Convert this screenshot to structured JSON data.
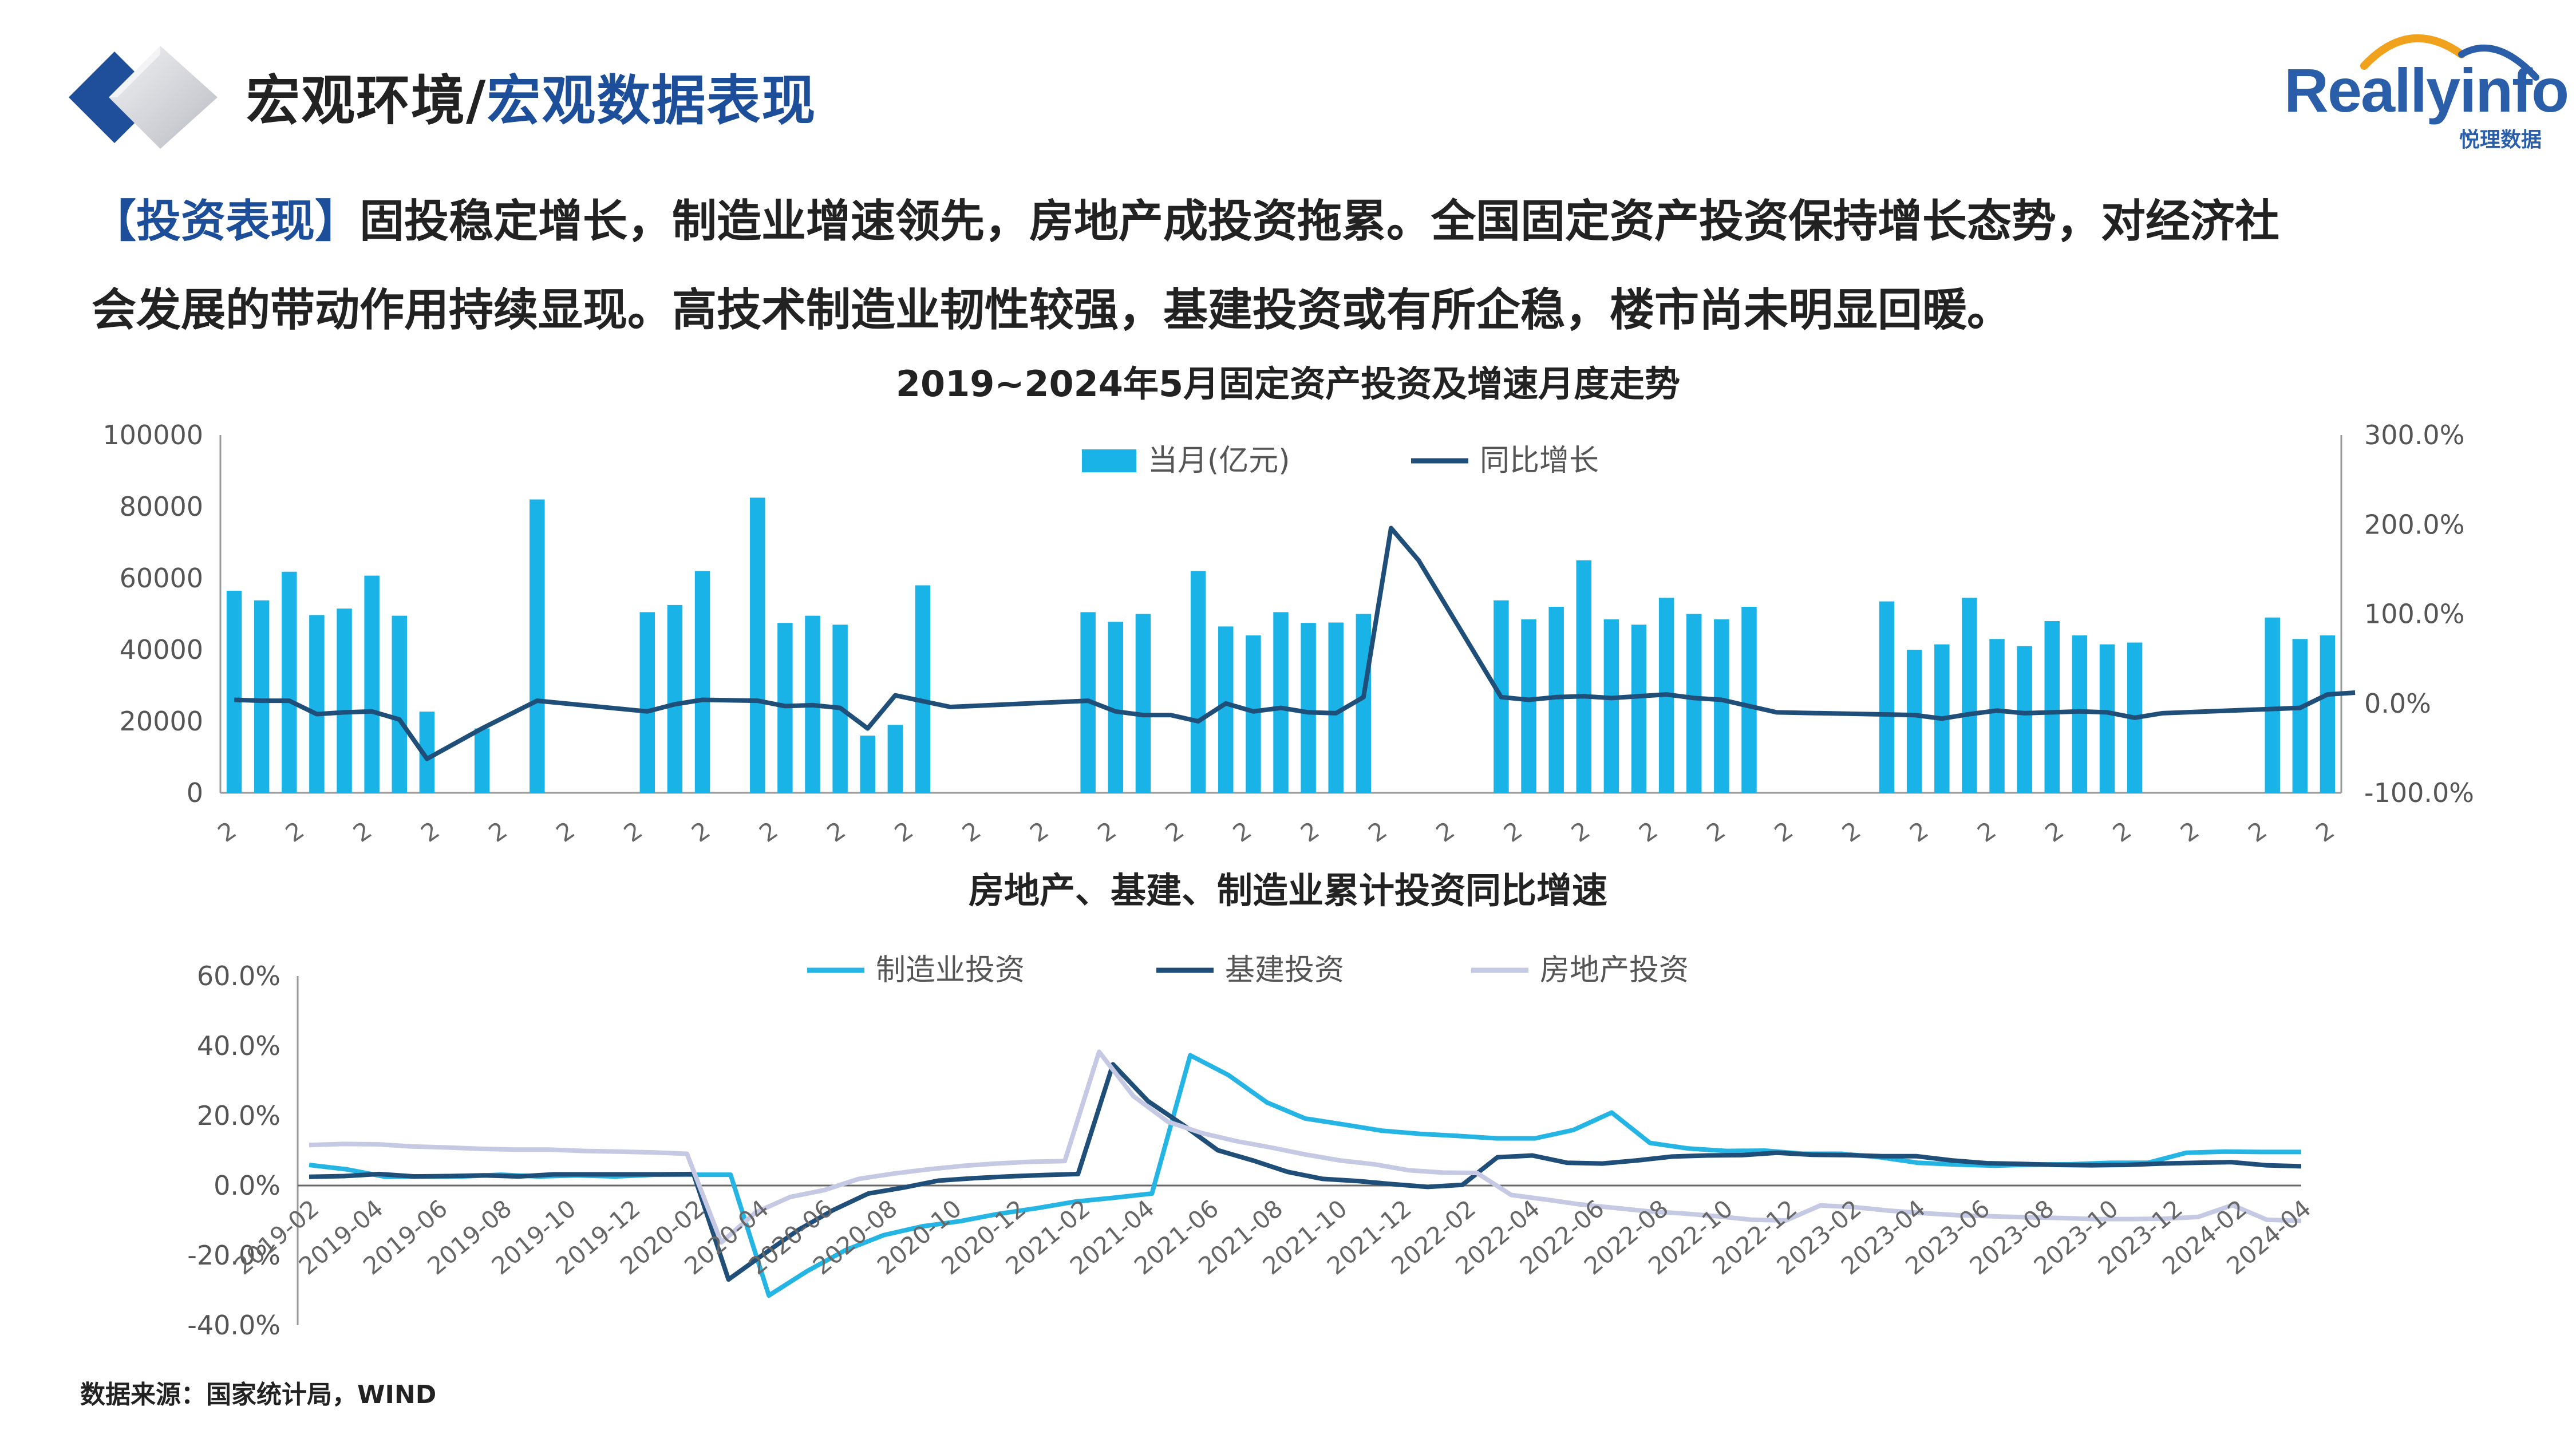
{
  "header": {
    "title_main": "宏观环境/",
    "title_sub": "宏观数据表现",
    "brand_name": "Reallyinfo",
    "brand_cn": "悦理数据"
  },
  "paragraph": {
    "tag": "【投资表现】",
    "line1": "固投稳定增长，制造业增速领先，房地产成投资拖累。全国固定资产投资保持增长态势，对经济社",
    "line2": "会发展的带动作用持续显现。高技术制造业韧性较强，基建投资或有所企稳，楼市尚未明显回暖。"
  },
  "source": "数据来源：国家统计局，WIND",
  "colors": {
    "bar": "#1ab3e8",
    "yoy": "#1f4e79",
    "manu": "#24b5e4",
    "infra": "#1f4e79",
    "realestate": "#c5c9e3"
  },
  "chart_data": [
    {
      "type": "bar",
      "title": "2019~2024年5月固定资产投资及增速月度走势",
      "legend": [
        "当月(亿元)",
        "同比增长"
      ],
      "legend_position": "top",
      "y_left": {
        "ticks": [
          "0",
          "20000",
          "40000",
          "60000",
          "80000",
          "100000"
        ],
        "ylim": [
          0,
          100000
        ]
      },
      "y_right": {
        "ticks": [
          "-100.0%",
          "0.0%",
          "100.0%",
          "200.0%",
          "300.0%"
        ],
        "ylim": [
          -100,
          300
        ]
      },
      "x_ticks": [
        "2",
        "2",
        "2",
        "2",
        "2",
        "2",
        "2",
        "2",
        "2",
        "2",
        "2",
        "2",
        "2",
        "2",
        "2",
        "2",
        "2",
        "2",
        "2",
        "2",
        "2",
        "2",
        "2",
        "2",
        "2",
        "2",
        "2",
        "2",
        "2",
        "2",
        "2",
        "2"
      ],
      "bars": [
        56500,
        53800,
        61800,
        49700,
        51500,
        60700,
        49500,
        22700,
        null,
        18000,
        null,
        82000,
        null,
        null,
        null,
        50500,
        52500,
        62000,
        null,
        82500,
        47500,
        49500,
        47000,
        16000,
        19000,
        58000,
        null,
        null,
        null,
        null,
        null,
        50500,
        47800,
        50000,
        null,
        62000,
        46500,
        44000,
        50500,
        47500,
        47600,
        50000,
        null,
        null,
        null,
        null,
        53800,
        48500,
        52000,
        65000,
        48500,
        47000,
        54500,
        50000,
        48500,
        52000,
        null,
        null,
        null,
        null,
        53500,
        40000,
        41500,
        54500,
        43000,
        41000,
        48000,
        44000,
        41500,
        42000,
        null,
        null,
        null,
        null,
        49000,
        43000,
        44000
      ],
      "yoy": [
        4,
        3,
        3,
        -12,
        -10,
        -9,
        -18,
        -62,
        null,
        -28,
        null,
        3,
        null,
        null,
        null,
        -9,
        -1,
        4,
        null,
        3,
        -3,
        -2,
        -5,
        -28,
        9,
        null,
        -4,
        null,
        null,
        null,
        null,
        3,
        -9,
        -13,
        -13,
        -20,
        0,
        -9,
        -5,
        -10,
        -11,
        7,
        196,
        160,
        null,
        null,
        7,
        4,
        7,
        8,
        6,
        8,
        10,
        6,
        4,
        null,
        -10,
        null,
        null,
        null,
        null,
        -13,
        -17,
        -12,
        -8,
        -11,
        -10,
        -9,
        -10,
        -16,
        -11,
        null,
        null,
        null,
        null,
        -5,
        10,
        12
      ]
    },
    {
      "type": "line",
      "title": "房地产、基建、制造业累计投资同比增速",
      "legend_position": "top",
      "ylim": [
        -40,
        60
      ],
      "y_ticks": [
        "-40.0%",
        "-20.0%",
        "0.0%",
        "20.0%",
        "40.0%",
        "60.0%"
      ],
      "x_ticks": [
        "2019-02",
        "2019-04",
        "2019-06",
        "2019-08",
        "2019-10",
        "2019-12",
        "2020-02",
        "2020-04",
        "2020-06",
        "2020-08",
        "2020-10",
        "2020-12",
        "2021-02",
        "2021-04",
        "2021-06",
        "2021-08",
        "2021-10",
        "2021-12",
        "2022-02",
        "2022-04",
        "2022-06",
        "2022-08",
        "2022-10",
        "2022-12",
        "2023-02",
        "2023-04",
        "2023-06",
        "2023-08",
        "2023-10",
        "2023-12",
        "2024-02",
        "2024-04"
      ],
      "series": [
        {
          "name": "制造业投资",
          "values": [
            5.9,
            4.6,
            2.5,
            2.6,
            2.6,
            3.1,
            2.6,
            2.9,
            2.6,
            3.1,
            3.1,
            3.1,
            -31.5,
            -24.5,
            -18.5,
            -14.2,
            -11.7,
            -10.2,
            -8.1,
            -6.5,
            -4.6,
            -3.5,
            -2.3,
            37.3,
            31.6,
            23.8,
            19.2,
            17.5,
            15.7,
            14.8,
            14.2,
            13.5,
            13.5,
            15.9,
            20.9,
            12.2,
            10.6,
            9.9,
            10.0,
            9.1,
            9.1,
            8.1,
            6.5,
            6.0,
            5.7,
            6.0,
            6.1,
            6.5,
            6.5,
            9.4,
            9.7,
            9.6,
            9.6
          ]
        },
        {
          "name": "基建投资",
          "values": [
            2.5,
            2.7,
            3.3,
            2.6,
            2.7,
            2.9,
            2.6,
            3.2,
            3.2,
            3.2,
            3.2,
            3.3,
            -26.9,
            -19.7,
            -12.7,
            -7.0,
            -2.3,
            -0.6,
            1.4,
            2.1,
            2.6,
            3.0,
            3.3,
            34.7,
            24.2,
            17.4,
            10.1,
            7.2,
            3.9,
            1.9,
            1.3,
            0.4,
            -0.4,
            0.2,
            8.1,
            8.6,
            6.5,
            6.3,
            7.2,
            8.3,
            8.6,
            8.7,
            9.4,
            8.8,
            8.7,
            8.4,
            8.4,
            7.2,
            6.4,
            6.2,
            5.9,
            5.8,
            5.9,
            6.3,
            6.5,
            6.7,
            5.8,
            5.5
          ]
        },
        {
          "name": "房地产投资",
          "values": [
            11.6,
            11.9,
            11.8,
            11.2,
            10.9,
            10.5,
            10.3,
            10.3,
            9.9,
            9.7,
            9.5,
            9.1,
            -16.3,
            -7.7,
            -3.3,
            -1.3,
            1.9,
            3.4,
            4.6,
            5.6,
            6.3,
            6.8,
            7.0,
            38.3,
            25.6,
            18.3,
            15.0,
            12.7,
            10.9,
            8.9,
            7.2,
            6.1,
            4.4,
            3.7,
            3.6,
            -2.7,
            -4.0,
            -5.4,
            -6.4,
            -7.4,
            -8.0,
            -8.8,
            -9.8,
            -10.0,
            -5.7,
            -6.2,
            -7.2,
            -7.9,
            -8.5,
            -8.8,
            -9.1,
            -9.3,
            -9.6,
            -9.6,
            -9.5,
            -9.0,
            -5.6,
            -9.8,
            -10.1
          ]
        }
      ]
    }
  ]
}
